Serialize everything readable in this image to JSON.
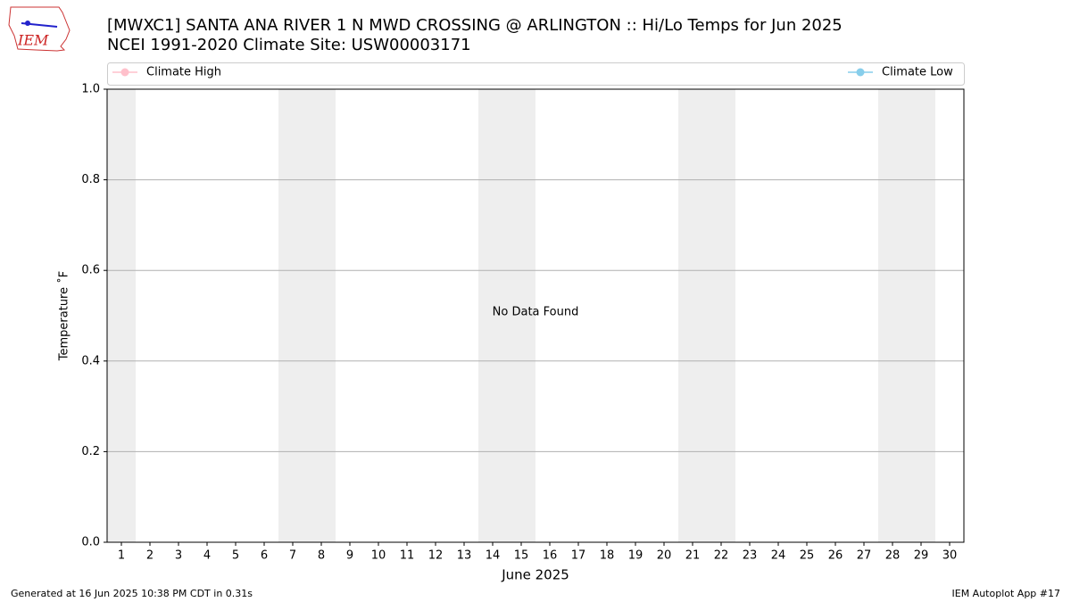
{
  "logo_text": "IEM",
  "footer_left": "Generated at 16 Jun 2025 10:38 PM CDT in 0.31s",
  "footer_right": "IEM Autoplot App #17",
  "chart_data": {
    "type": "line",
    "title": "[MWXC1] SANTA ANA RIVER 1 N MWD CROSSING @ ARLINGTON :: Hi/Lo Temps for Jun 2025",
    "subtitle": "NCEI 1991-2020 Climate Site: USW00003171",
    "xlabel": "June 2025",
    "ylabel": "Temperature ˚F",
    "annotation": "No Data Found",
    "x": [
      1,
      2,
      3,
      4,
      5,
      6,
      7,
      8,
      9,
      10,
      11,
      12,
      13,
      14,
      15,
      16,
      17,
      18,
      19,
      20,
      21,
      22,
      23,
      24,
      25,
      26,
      27,
      28,
      29,
      30
    ],
    "series": [
      {
        "name": "Climate High",
        "color": "#ffc0cb",
        "values": [
          null,
          null,
          null,
          null,
          null,
          null,
          null,
          null,
          null,
          null,
          null,
          null,
          null,
          null,
          null,
          null,
          null,
          null,
          null,
          null,
          null,
          null,
          null,
          null,
          null,
          null,
          null,
          null,
          null,
          null
        ]
      },
      {
        "name": "Climate Low",
        "color": "#87ceeb",
        "values": [
          null,
          null,
          null,
          null,
          null,
          null,
          null,
          null,
          null,
          null,
          null,
          null,
          null,
          null,
          null,
          null,
          null,
          null,
          null,
          null,
          null,
          null,
          null,
          null,
          null,
          null,
          null,
          null,
          null,
          null
        ]
      }
    ],
    "weekend_bands": [
      [
        0.5,
        1.5
      ],
      [
        6.5,
        8.5
      ],
      [
        13.5,
        15.5
      ],
      [
        20.5,
        22.5
      ],
      [
        27.5,
        29.5
      ]
    ],
    "band_color": "#eeeeee",
    "xlim": [
      0.5,
      30.5
    ],
    "xticks": [
      1,
      2,
      3,
      4,
      5,
      6,
      7,
      8,
      9,
      10,
      11,
      12,
      13,
      14,
      15,
      16,
      17,
      18,
      19,
      20,
      21,
      22,
      23,
      24,
      25,
      26,
      27,
      28,
      29,
      30
    ],
    "ylim": [
      0,
      1
    ],
    "yticks": [
      {
        "value": 0,
        "label": "0.0"
      },
      0.2,
      0.4,
      0.6,
      0.8,
      {
        "value": 1,
        "label": "1.0"
      }
    ],
    "grid": true
  }
}
